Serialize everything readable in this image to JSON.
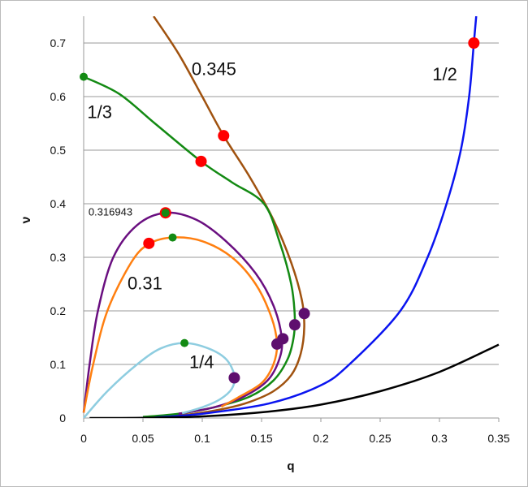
{
  "chart_data": {
    "type": "line",
    "xlabel": "q",
    "ylabel": "ν",
    "xlim": [
      0,
      0.35
    ],
    "ylim": [
      0,
      0.75
    ],
    "xticks": [
      "0",
      "0.05",
      "0.1",
      "0.15",
      "0.2",
      "0.25",
      "0.3",
      "0.35"
    ],
    "xtick_values": [
      0,
      0.05,
      0.1,
      0.15,
      0.2,
      0.25,
      0.3,
      0.35
    ],
    "yticks": [
      "0",
      "0.1",
      "0.2",
      "0.3",
      "0.4",
      "0.5",
      "0.6",
      "0.7"
    ],
    "ytick_values": [
      0,
      0.1,
      0.2,
      0.3,
      0.4,
      0.5,
      0.6,
      0.7
    ],
    "grid": "horizontal",
    "series": [
      {
        "label": "0.345",
        "color": "#a0520f",
        "points": [
          [
            0.059,
            0.75
          ],
          [
            0.08,
            0.68
          ],
          [
            0.1,
            0.6
          ],
          [
            0.118,
            0.527
          ],
          [
            0.14,
            0.45
          ],
          [
            0.16,
            0.37
          ],
          [
            0.175,
            0.29
          ],
          [
            0.184,
            0.22
          ],
          [
            0.186,
            0.17
          ],
          [
            0.183,
            0.12
          ],
          [
            0.175,
            0.08
          ],
          [
            0.16,
            0.05
          ],
          [
            0.14,
            0.03
          ],
          [
            0.12,
            0.018
          ],
          [
            0.09,
            0.007
          ],
          [
            0.06,
            0.002
          ]
        ]
      },
      {
        "label": "1/3",
        "color": "#138a13",
        "points": [
          [
            0,
            0.637
          ],
          [
            0.03,
            0.605
          ],
          [
            0.06,
            0.55
          ],
          [
            0.099,
            0.479
          ],
          [
            0.125,
            0.44
          ],
          [
            0.152,
            0.4
          ],
          [
            0.165,
            0.33
          ],
          [
            0.175,
            0.25
          ],
          [
            0.178,
            0.19
          ],
          [
            0.177,
            0.15
          ],
          [
            0.172,
            0.11
          ],
          [
            0.16,
            0.07
          ],
          [
            0.14,
            0.04
          ],
          [
            0.11,
            0.02
          ],
          [
            0.08,
            0.008
          ],
          [
            0.05,
            0.002
          ]
        ]
      },
      {
        "label": "0.316943",
        "color": "#6a0f80",
        "points": [
          [
            0,
            0.01
          ],
          [
            0.005,
            0.1
          ],
          [
            0.012,
            0.2
          ],
          [
            0.025,
            0.3
          ],
          [
            0.045,
            0.36
          ],
          [
            0.069,
            0.383
          ],
          [
            0.095,
            0.37
          ],
          [
            0.12,
            0.33
          ],
          [
            0.145,
            0.27
          ],
          [
            0.16,
            0.21
          ],
          [
            0.167,
            0.15
          ],
          [
            0.165,
            0.11
          ],
          [
            0.155,
            0.07
          ],
          [
            0.135,
            0.04
          ],
          [
            0.11,
            0.02
          ],
          [
            0.08,
            0.008
          ]
        ]
      },
      {
        "label": "0.31",
        "color": "#ff7f10",
        "points": [
          [
            0,
            0.01
          ],
          [
            0.008,
            0.1
          ],
          [
            0.02,
            0.2
          ],
          [
            0.04,
            0.29
          ],
          [
            0.055,
            0.325
          ],
          [
            0.075,
            0.337
          ],
          [
            0.1,
            0.33
          ],
          [
            0.125,
            0.3
          ],
          [
            0.145,
            0.25
          ],
          [
            0.158,
            0.19
          ],
          [
            0.163,
            0.14
          ],
          [
            0.16,
            0.1
          ],
          [
            0.15,
            0.065
          ],
          [
            0.13,
            0.038
          ],
          [
            0.116,
            0.021
          ]
        ]
      },
      {
        "label": "1/4",
        "color": "#8ecde0",
        "points": [
          [
            0,
            0
          ],
          [
            0.02,
            0.05
          ],
          [
            0.045,
            0.1
          ],
          [
            0.065,
            0.13
          ],
          [
            0.085,
            0.14
          ],
          [
            0.105,
            0.13
          ],
          [
            0.12,
            0.11
          ],
          [
            0.127,
            0.08
          ],
          [
            0.125,
            0.055
          ],
          [
            0.115,
            0.035
          ],
          [
            0.1,
            0.02
          ],
          [
            0.083,
            0.009
          ]
        ]
      },
      {
        "label": "1/2",
        "color": "#0a14f0",
        "points": [
          [
            0.06,
            0.001
          ],
          [
            0.1,
            0.008
          ],
          [
            0.156,
            0.027
          ],
          [
            0.199,
            0.06
          ],
          [
            0.224,
            0.1
          ],
          [
            0.267,
            0.2
          ],
          [
            0.29,
            0.3
          ],
          [
            0.306,
            0.4
          ],
          [
            0.318,
            0.5
          ],
          [
            0.325,
            0.6
          ],
          [
            0.329,
            0.7
          ],
          [
            0.331,
            0.75
          ]
        ]
      },
      {
        "label": "",
        "color": "#000000",
        "points": [
          [
            0.005,
            0
          ],
          [
            0.05,
            0.0004
          ],
          [
            0.1,
            0.003
          ],
          [
            0.156,
            0.012
          ],
          [
            0.2,
            0.025
          ],
          [
            0.25,
            0.05
          ],
          [
            0.3,
            0.086
          ],
          [
            0.35,
            0.137
          ]
        ]
      }
    ],
    "markers": [
      {
        "color": "#ff0000",
        "size": "large",
        "points": [
          [
            0.329,
            0.7
          ],
          [
            0.118,
            0.527
          ],
          [
            0.099,
            0.479
          ],
          [
            0.069,
            0.383
          ],
          [
            0.055,
            0.326
          ]
        ]
      },
      {
        "color": "#138a13",
        "size": "small",
        "points": [
          [
            0,
            0.637
          ],
          [
            0.069,
            0.383
          ],
          [
            0.075,
            0.337
          ],
          [
            0.085,
            0.14
          ]
        ]
      },
      {
        "color": "#5e0f6e",
        "size": "large",
        "points": [
          [
            0.186,
            0.195
          ],
          [
            0.178,
            0.174
          ],
          [
            0.168,
            0.148
          ],
          [
            0.163,
            0.138
          ],
          [
            0.127,
            0.075
          ]
        ]
      }
    ],
    "annotations": [
      {
        "text": "0.345",
        "at": [
          0.091,
          0.64
        ],
        "size": "large"
      },
      {
        "text": "1/3",
        "at": [
          0.003,
          0.56
        ],
        "size": "large"
      },
      {
        "text": "0.316943",
        "at": [
          0.004,
          0.378
        ],
        "size": "small"
      },
      {
        "text": "0.31",
        "at": [
          0.037,
          0.24
        ],
        "size": "large"
      },
      {
        "text": "1/4",
        "at": [
          0.089,
          0.093
        ],
        "size": "large"
      },
      {
        "text": "1/2",
        "at": [
          0.294,
          0.63
        ],
        "size": "large"
      }
    ]
  }
}
